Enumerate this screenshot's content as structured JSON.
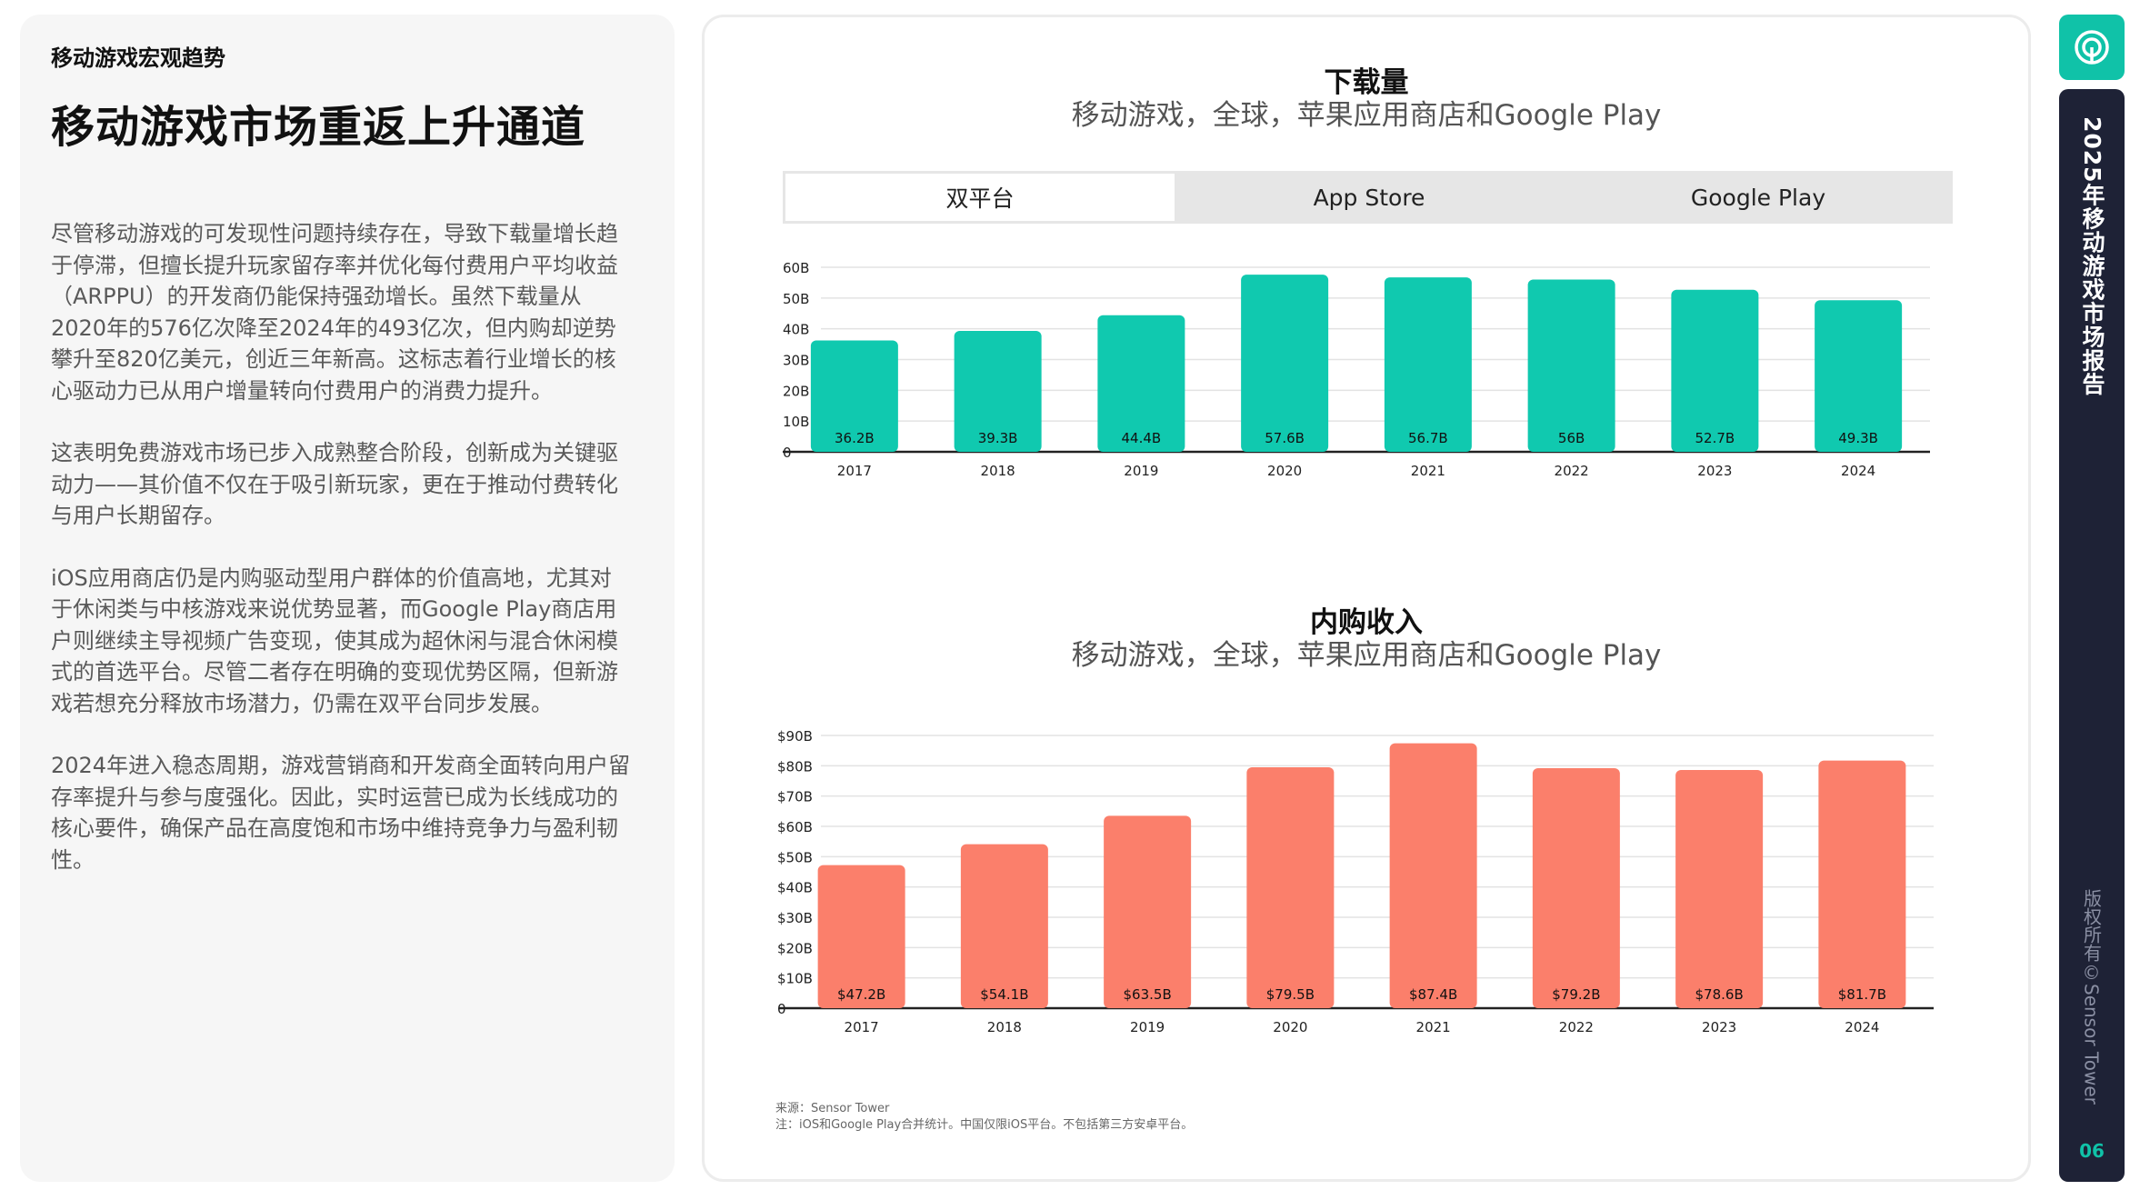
{
  "left": {
    "section_label": "移动游戏宏观趋势",
    "title": "移动游戏市场重返上升通道",
    "paragraphs": [
      "尽管移动游戏的可发现性问题持续存在，导致下载量增长趋于停滞，但擅长提升玩家留存率并优化每付费用户平均收益（ARPPU）的开发商仍能保持强劲增长。虽然下载量从2020年的576亿次降至2024年的493亿次，但内购却逆势攀升至820亿美元，创近三年新高。这标志着行业增长的核心驱动力已从用户增量转向付费用户的消费力提升。",
      "这表明免费游戏市场已步入成熟整合阶段，创新成为关键驱动力——其价值不仅在于吸引新玩家，更在于推动付费转化与用户长期留存。",
      "iOS应用商店仍是内购驱动型用户群体的价值高地，尤其对于休闲类与中核游戏来说优势显著，而Google Play商店用户则继续主导视频广告变现，使其成为超休闲与混合休闲模式的首选平台。尽管二者存在明确的变现优势区隔，但新游戏若想充分释放市场潜力，仍需在双平台同步发展。",
      "2024年进入稳态周期，游戏营销商和开发商全面转向用户留存率提升与参与度强化。因此，实时运营已成为长线成功的核心要件，确保产品在高度饱和市场中维持竞争力与盈利韧性。"
    ]
  },
  "downloads": {
    "title": "下载量",
    "subtitle": "移动游戏，全球，苹果应用商店和Google Play",
    "tabs": [
      {
        "label": "双平台",
        "active": true
      },
      {
        "label": "App Store",
        "active": false
      },
      {
        "label": "Google Play",
        "active": false
      }
    ]
  },
  "iap": {
    "title": "内购收入",
    "subtitle": "移动游戏，全球，苹果应用商店和Google Play"
  },
  "chart_data": [
    {
      "type": "bar",
      "title": "下载量",
      "subtitle": "移动游戏，全球，苹果应用商店和Google Play",
      "categories": [
        "2017",
        "2018",
        "2019",
        "2020",
        "2021",
        "2022",
        "2023",
        "2024"
      ],
      "values": [
        36.2,
        39.3,
        44.4,
        57.6,
        56.7,
        56,
        52.7,
        49.3
      ],
      "value_labels": [
        "36.2B",
        "39.3B",
        "44.4B",
        "57.6B",
        "56.7B",
        "56B",
        "52.7B",
        "49.3B"
      ],
      "yticks": [
        "0",
        "10B",
        "20B",
        "30B",
        "40B",
        "50B",
        "60B"
      ],
      "ylim": [
        0,
        60
      ],
      "color": "#10c9af",
      "grid": true
    },
    {
      "type": "bar",
      "title": "内购收入",
      "subtitle": "移动游戏，全球，苹果应用商店和Google Play",
      "categories": [
        "2017",
        "2018",
        "2019",
        "2020",
        "2021",
        "2022",
        "2023",
        "2024"
      ],
      "values": [
        47.2,
        54.1,
        63.5,
        79.5,
        87.4,
        79.2,
        78.6,
        81.7
      ],
      "value_labels": [
        "$47.2B",
        "$54.1B",
        "$63.5B",
        "$79.5B",
        "$87.4B",
        "$79.2B",
        "$78.6B",
        "$81.7B"
      ],
      "yticks": [
        "0",
        "$10B",
        "$20B",
        "$30B",
        "$40B",
        "$50B",
        "$60B",
        "$70B",
        "$80B",
        "$90B"
      ],
      "ylim": [
        0,
        90
      ],
      "color": "#fb7f6b",
      "grid": true
    }
  ],
  "footnote": {
    "source": "来源：Sensor Tower",
    "note": "注：iOS和Google Play合并统计。中国仅限iOS平台。不包括第三方安卓平台。"
  },
  "sidebar": {
    "report_title": "2025年移动游戏市场报告",
    "copyright": "版权所有©Sensor Tower",
    "page_number": "06"
  }
}
